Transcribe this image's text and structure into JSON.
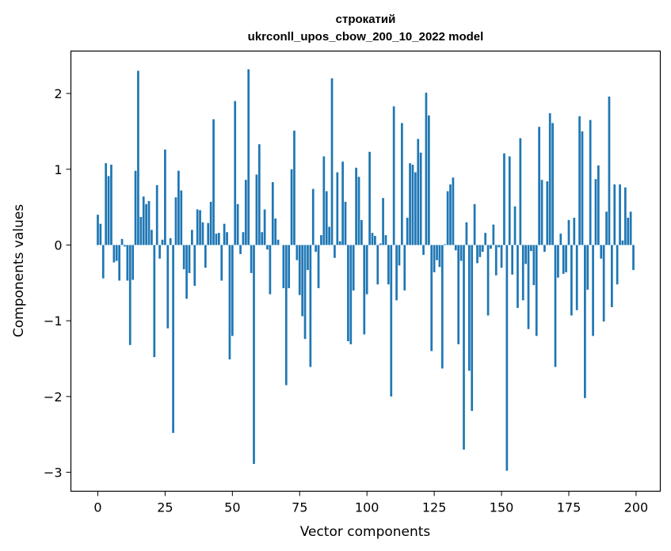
{
  "chart_data": {
    "type": "bar",
    "title": "строкатий",
    "subtitle": "ukrconll_upos_cbow_200_10_2022 model",
    "xlabel": "Vector components",
    "ylabel": "Components values",
    "xlim": [
      -10,
      209
    ],
    "ylim": [
      -3.25,
      2.56
    ],
    "xticks": [
      0,
      25,
      50,
      75,
      100,
      125,
      150,
      175,
      200
    ],
    "yticks": [
      -3,
      -2,
      -1,
      0,
      1,
      2
    ],
    "ytick_labels": [
      "−3",
      "−2",
      "−1",
      "0",
      "1",
      "2"
    ],
    "bar_color": "#1f77b4",
    "grid": false,
    "x": [
      0,
      1,
      2,
      3,
      4,
      5,
      6,
      7,
      8,
      9,
      10,
      11,
      12,
      13,
      14,
      15,
      16,
      17,
      18,
      19,
      20,
      21,
      22,
      23,
      24,
      25,
      26,
      27,
      28,
      29,
      30,
      31,
      32,
      33,
      34,
      35,
      36,
      37,
      38,
      39,
      40,
      41,
      42,
      43,
      44,
      45,
      46,
      47,
      48,
      49,
      50,
      51,
      52,
      53,
      54,
      55,
      56,
      57,
      58,
      59,
      60,
      61,
      62,
      63,
      64,
      65,
      66,
      67,
      68,
      69,
      70,
      71,
      72,
      73,
      74,
      75,
      76,
      77,
      78,
      79,
      80,
      81,
      82,
      83,
      84,
      85,
      86,
      87,
      88,
      89,
      90,
      91,
      92,
      93,
      94,
      95,
      96,
      97,
      98,
      99,
      100,
      101,
      102,
      103,
      104,
      105,
      106,
      107,
      108,
      109,
      110,
      111,
      112,
      113,
      114,
      115,
      116,
      117,
      118,
      119,
      120,
      121,
      122,
      123,
      124,
      125,
      126,
      127,
      128,
      129,
      130,
      131,
      132,
      133,
      134,
      135,
      136,
      137,
      138,
      139,
      140,
      141,
      142,
      143,
      144,
      145,
      146,
      147,
      148,
      149,
      150,
      151,
      152,
      153,
      154,
      155,
      156,
      157,
      158,
      159,
      160,
      161,
      162,
      163,
      164,
      165,
      166,
      167,
      168,
      169,
      170,
      171,
      172,
      173,
      174,
      175,
      176,
      177,
      178,
      179,
      180,
      181,
      182,
      183,
      184,
      185,
      186,
      187,
      188,
      189,
      190,
      191,
      192,
      193,
      194,
      195,
      196,
      197,
      198,
      199
    ],
    "values": [
      0.4,
      0.28,
      -0.44,
      1.08,
      0.91,
      1.06,
      -0.23,
      -0.21,
      -0.47,
      0.08,
      -0.02,
      -0.47,
      -1.32,
      -0.46,
      0.98,
      2.3,
      0.37,
      0.64,
      0.54,
      0.58,
      0.2,
      -1.48,
      0.79,
      -0.18,
      0.07,
      1.26,
      -1.1,
      0.09,
      -2.48,
      0.63,
      0.98,
      0.72,
      -0.32,
      -0.71,
      -0.37,
      0.2,
      -0.54,
      0.47,
      0.46,
      0.3,
      -0.3,
      0.29,
      0.57,
      1.66,
      0.15,
      0.16,
      -0.47,
      0.28,
      0.17,
      -1.51,
      -1.2,
      1.9,
      0.54,
      -0.12,
      0.17,
      0.86,
      2.32,
      -0.37,
      -2.89,
      0.93,
      1.33,
      0.17,
      0.47,
      -0.06,
      -0.65,
      0.83,
      0.35,
      0.07,
      0.0,
      -0.57,
      -1.85,
      -0.57,
      1.0,
      1.51,
      -0.2,
      -0.66,
      -0.94,
      -1.24,
      -0.33,
      -1.61,
      0.74,
      -0.09,
      -0.57,
      0.13,
      1.17,
      0.71,
      0.24,
      2.2,
      -0.17,
      0.96,
      0.05,
      1.1,
      0.57,
      -1.27,
      -1.31,
      -0.6,
      1.02,
      0.9,
      0.33,
      -1.18,
      -0.65,
      1.23,
      0.16,
      0.12,
      -0.52,
      0.02,
      0.62,
      0.13,
      -0.52,
      -2.0,
      1.83,
      -0.73,
      -0.27,
      1.61,
      -0.6,
      0.36,
      1.08,
      1.06,
      0.96,
      1.4,
      1.22,
      -0.13,
      2.01,
      1.71,
      -1.4,
      -0.36,
      -0.2,
      -0.29,
      -1.63,
      0.01,
      0.71,
      0.8,
      0.89,
      -0.07,
      -1.31,
      -0.21,
      -2.7,
      0.3,
      -1.66,
      -2.19,
      0.54,
      -0.24,
      -0.16,
      -0.09,
      0.16,
      -0.93,
      -0.05,
      0.27,
      -0.4,
      -0.03,
      -0.3,
      1.21,
      -2.98,
      1.17,
      -0.39,
      0.51,
      -0.83,
      1.41,
      -0.73,
      -0.25,
      -1.11,
      -0.08,
      -0.53,
      -1.2,
      1.56,
      0.86,
      -0.09,
      0.84,
      1.74,
      1.61,
      -1.61,
      -0.43,
      0.15,
      -0.38,
      -0.36,
      0.33,
      -0.93,
      0.36,
      -0.86,
      1.7,
      1.5,
      -2.02,
      -0.59,
      1.65,
      -1.2,
      0.87,
      1.05,
      -0.18,
      -1.01,
      0.44,
      1.96,
      -0.82,
      0.8,
      -0.52,
      0.8,
      0.06,
      0.76,
      0.36,
      0.44,
      -0.33
    ]
  }
}
